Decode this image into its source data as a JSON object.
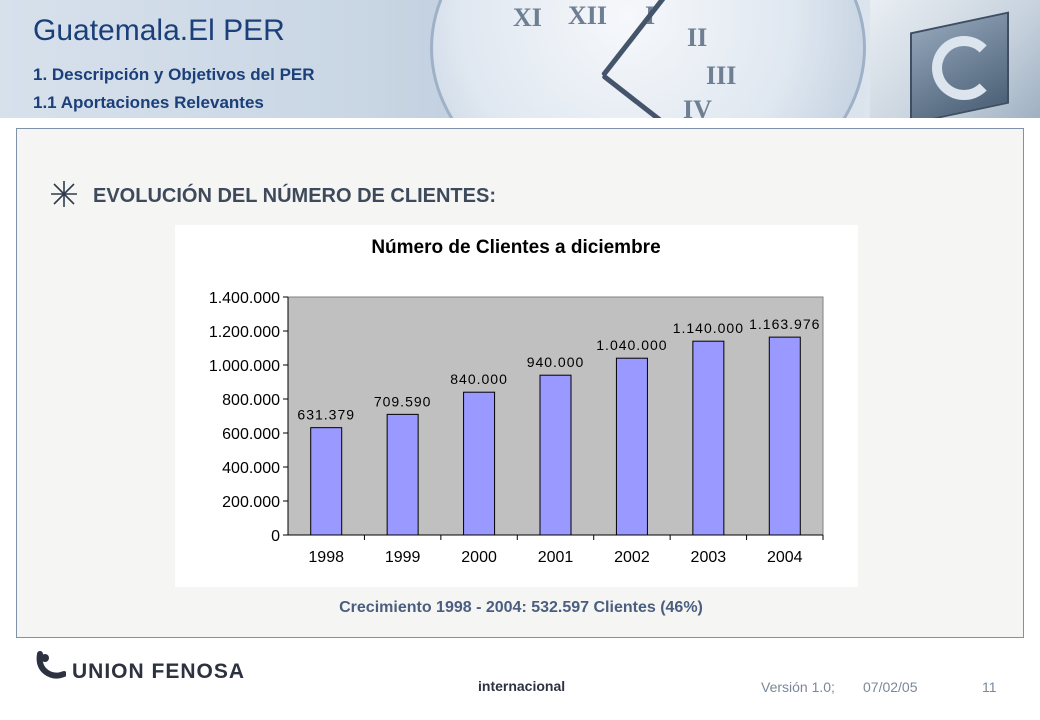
{
  "header": {
    "title": "Guatemala.El PER",
    "subtitle1": "1. Descripción y Objetivos del PER",
    "subtitle2": "1.1 Aportaciones Relevantes",
    "clock_numerals": [
      "XI",
      "XII",
      "I",
      "II",
      "III",
      "IV"
    ]
  },
  "section": {
    "bullet_icon": "asterisk-icon",
    "heading": "EVOLUCIÓN DEL NÚMERO DE CLIENTES:"
  },
  "chart_data": {
    "type": "bar",
    "title": "Número de Clientes a diciembre",
    "xlabel": "",
    "ylabel": "",
    "categories": [
      "1998",
      "1999",
      "2000",
      "2001",
      "2002",
      "2003",
      "2004"
    ],
    "values": [
      631379,
      709590,
      840000,
      940000,
      1040000,
      1140000,
      1163976
    ],
    "data_labels": [
      "631.379",
      "709.590",
      "840.000",
      "940.000",
      "1.040.000",
      "1.140.000",
      "1.163.976"
    ],
    "ylim": [
      0,
      1400000
    ],
    "yticks": [
      0,
      200000,
      400000,
      600000,
      800000,
      1000000,
      1200000,
      1400000
    ],
    "ytick_labels": [
      "0",
      "200.000",
      "400.000",
      "600.000",
      "800.000",
      "1.000.000",
      "1.200.000",
      "1.400.000"
    ],
    "grid": false,
    "legend": "none",
    "colors": {
      "bar": "#9999ff",
      "bar_edge": "#000000",
      "plot_area": "#c0c0c0"
    }
  },
  "growth_note": "Crecimiento 1998 - 2004: 532.597 Clientes (46%)",
  "footer": {
    "logo_text": "UNION FENOSA",
    "sub_text": "internacional",
    "version": "Versión 1.0;",
    "date": "07/02/05",
    "page": "11"
  },
  "colors": {
    "title_blue": "#1b3f78",
    "frame_border": "#7e90aa",
    "growth_text": "#4a5e7f"
  }
}
